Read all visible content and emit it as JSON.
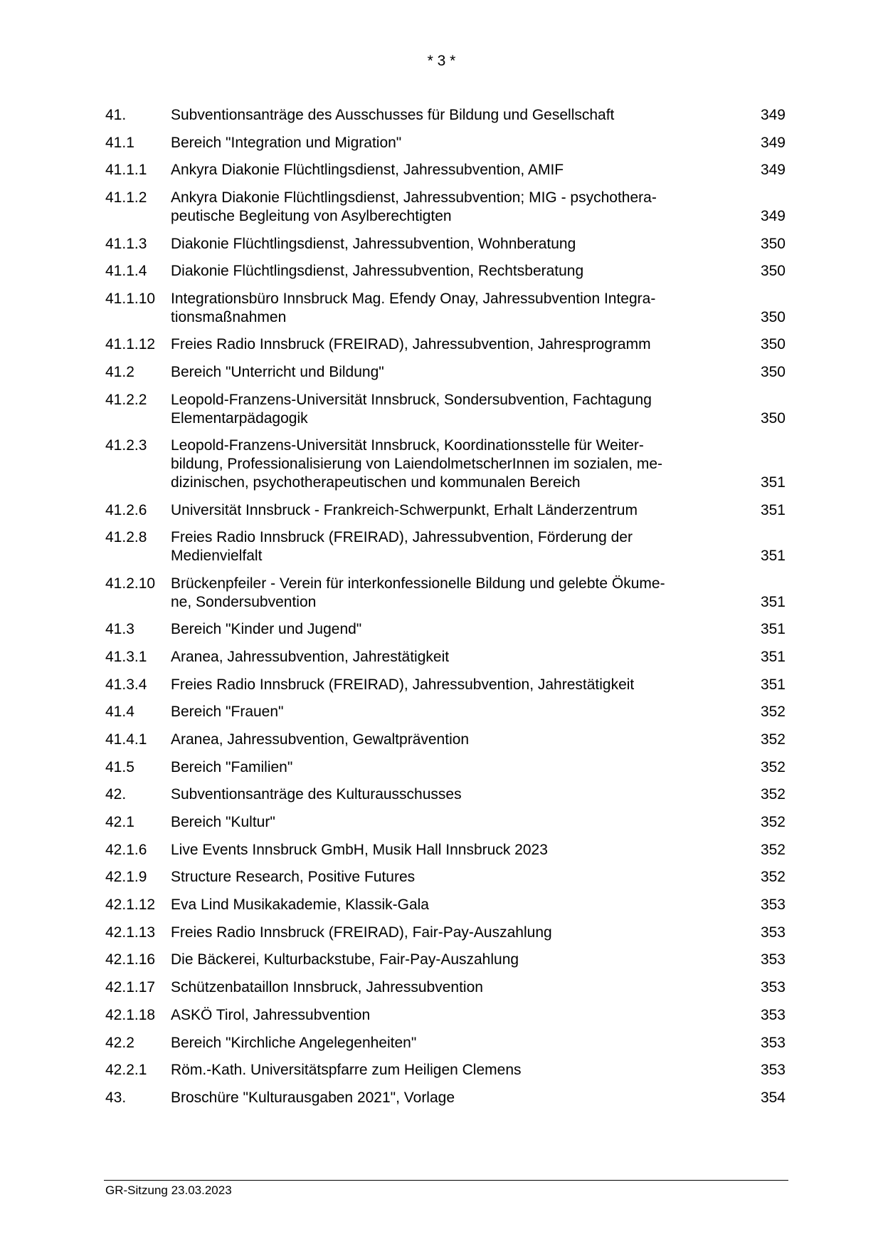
{
  "header": {
    "page_number": "* 3 *"
  },
  "toc": [
    {
      "num": "41.",
      "lines": [
        "Subventionsanträge des Ausschusses für Bildung und Gesellschaft"
      ],
      "page": "349"
    },
    {
      "num": "41.1",
      "lines": [
        "Bereich \"Integration und Migration\""
      ],
      "page": "349"
    },
    {
      "num": "41.1.1",
      "lines": [
        "Ankyra Diakonie Flüchtlingsdienst, Jahressubvention, AMIF"
      ],
      "page": "349"
    },
    {
      "num": "41.1.2",
      "lines": [
        "Ankyra Diakonie Flüchtlingsdienst, Jahressubvention; MIG - psychothera-",
        "peutische Begleitung von Asylberechtigten"
      ],
      "page": "349"
    },
    {
      "num": "41.1.3",
      "lines": [
        "Diakonie Flüchtlingsdienst, Jahressubvention, Wohnberatung"
      ],
      "page": "350"
    },
    {
      "num": "41.1.4",
      "lines": [
        "Diakonie Flüchtlingsdienst, Jahressubvention, Rechtsberatung"
      ],
      "page": "350"
    },
    {
      "num": "41.1.10",
      "lines": [
        "Integrationsbüro Innsbruck Mag. Efendy Onay, Jahressubvention Integra-",
        "tionsmaßnahmen"
      ],
      "page": "350"
    },
    {
      "num": "41.1.12",
      "lines": [
        "Freies Radio Innsbruck (FREIRAD), Jahressubvention, Jahresprogramm"
      ],
      "page": "350"
    },
    {
      "num": "41.2",
      "lines": [
        "Bereich \"Unterricht und Bildung\""
      ],
      "page": "350"
    },
    {
      "num": "41.2.2",
      "lines": [
        "Leopold-Franzens-Universität Innsbruck, Sondersubvention, Fachtagung",
        "Elementarpädagogik"
      ],
      "page": "350"
    },
    {
      "num": "41.2.3",
      "lines": [
        "Leopold-Franzens-Universität Innsbruck, Koordinationsstelle für Weiter-",
        "bildung, Professionalisierung von LaiendolmetscherInnen im sozialen, me-",
        "dizinischen, psychotherapeutischen und kommunalen Bereich"
      ],
      "page": "351"
    },
    {
      "num": "41.2.6",
      "lines": [
        "Universität Innsbruck - Frankreich-Schwerpunkt, Erhalt Länderzentrum"
      ],
      "page": "351"
    },
    {
      "num": "41.2.8",
      "lines": [
        "Freies Radio Innsbruck (FREIRAD), Jahressubvention, Förderung der",
        "Medienvielfalt"
      ],
      "page": "351"
    },
    {
      "num": "41.2.10",
      "lines": [
        "Brückenpfeiler - Verein für interkonfessionelle Bildung und gelebte Ökume-",
        "ne, Sondersubvention"
      ],
      "page": "351"
    },
    {
      "num": "41.3",
      "lines": [
        "Bereich \"Kinder und Jugend\""
      ],
      "page": "351"
    },
    {
      "num": "41.3.1",
      "lines": [
        "Aranea, Jahressubvention, Jahrestätigkeit"
      ],
      "page": "351"
    },
    {
      "num": "41.3.4",
      "lines": [
        "Freies Radio Innsbruck (FREIRAD), Jahressubvention, Jahrestätigkeit"
      ],
      "page": "351"
    },
    {
      "num": "41.4",
      "lines": [
        "Bereich \"Frauen\""
      ],
      "page": "352"
    },
    {
      "num": "41.4.1",
      "lines": [
        "Aranea, Jahressubvention, Gewaltprävention"
      ],
      "page": "352"
    },
    {
      "num": "41.5",
      "lines": [
        "Bereich \"Familien\""
      ],
      "page": "352"
    },
    {
      "num": "42.",
      "lines": [
        "Subventionsanträge des Kulturausschusses"
      ],
      "page": "352"
    },
    {
      "num": "42.1",
      "lines": [
        "Bereich \"Kultur\""
      ],
      "page": "352"
    },
    {
      "num": "42.1.6",
      "lines": [
        "Live Events Innsbruck GmbH, Musik Hall Innsbruck 2023"
      ],
      "page": "352"
    },
    {
      "num": "42.1.9",
      "lines": [
        "Structure Research, Positive Futures"
      ],
      "page": "352"
    },
    {
      "num": "42.1.12",
      "lines": [
        "Eva Lind Musikakademie, Klassik-Gala"
      ],
      "page": "353"
    },
    {
      "num": "42.1.13",
      "lines": [
        "Freies Radio Innsbruck (FREIRAD), Fair-Pay-Auszahlung"
      ],
      "page": "353"
    },
    {
      "num": "42.1.16",
      "lines": [
        "Die Bäckerei, Kulturbackstube, Fair-Pay-Auszahlung"
      ],
      "page": "353"
    },
    {
      "num": "42.1.17",
      "lines": [
        "Schützenbataillon Innsbruck, Jahressubvention"
      ],
      "page": "353"
    },
    {
      "num": "42.1.18",
      "lines": [
        "ASKÖ Tirol, Jahressubvention"
      ],
      "page": "353"
    },
    {
      "num": "42.2",
      "lines": [
        "Bereich \"Kirchliche Angelegenheiten\""
      ],
      "page": "353"
    },
    {
      "num": "42.2.1",
      "lines": [
        "Röm.-Kath. Universitätspfarre zum Heiligen Clemens"
      ],
      "page": "353"
    },
    {
      "num": "43.",
      "lines": [
        "Broschüre \"Kulturausgaben 2021\", Vorlage"
      ],
      "page": "354"
    }
  ],
  "footer": {
    "text": "GR-Sitzung 23.03.2023"
  }
}
